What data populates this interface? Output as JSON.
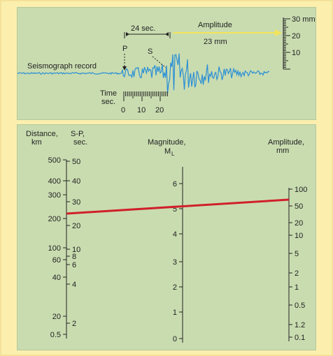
{
  "seismograph": {
    "record_label": "Seismograph record",
    "p_label": "P",
    "s_label": "S",
    "sp_interval_label": "24 sec.",
    "amplitude_title": "Amplitude",
    "amplitude_value": "23 mm",
    "time_label_line1": "Time",
    "time_label_line2": "sec.",
    "time_ticks": [
      "0",
      "10",
      "20"
    ],
    "amp_scale_ticks": [
      "30 mm",
      "20",
      "10"
    ]
  },
  "nomogram": {
    "distance_header_line1": "Distance,",
    "distance_header_line2": "km",
    "sp_header_line1": "S-P,",
    "sp_header_line2": "sec.",
    "magnitude_header_line1": "Magnitude,",
    "magnitude_header_ml": "M",
    "magnitude_header_sub": "L",
    "amplitude_header_line1": "Amplitude,",
    "amplitude_header_line2": "mm",
    "distance_ticks": [
      "500",
      "400",
      "300",
      "200",
      "100",
      "60",
      "40",
      "20",
      "0.5"
    ],
    "sp_ticks": [
      "50",
      "40",
      "30",
      "20",
      "10",
      "8",
      "6",
      "4",
      "2"
    ],
    "magnitude_ticks": [
      "6",
      "5",
      "4",
      "3",
      "2",
      "1",
      "0"
    ],
    "amplitude_ticks": [
      "100",
      "50",
      "20",
      "10",
      "5",
      "2",
      "1",
      "0.5",
      "1.2",
      "0.1"
    ],
    "connecting_line_color": "#d0202a",
    "accent_arrow_color": "#f2e35a"
  }
}
